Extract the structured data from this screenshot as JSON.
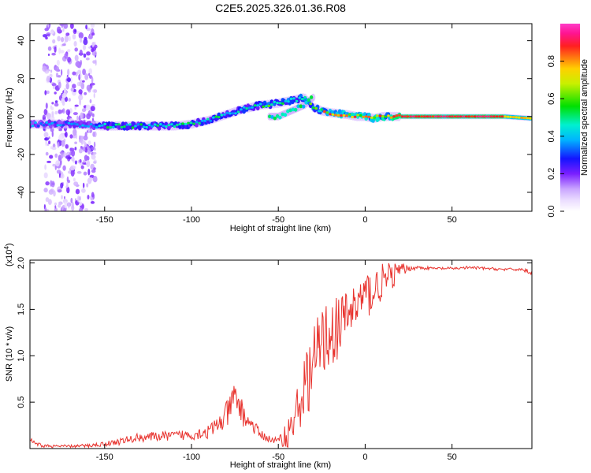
{
  "title": "C2E5.2025.326.01.36.R08",
  "chart_data": [
    {
      "type": "heatmap",
      "name": "spectrogram",
      "xlabel": "Height of straight line (km)",
      "ylabel": "Frequency (Hz)",
      "xlim": [
        -193,
        96
      ],
      "ylim": [
        -50,
        49
      ],
      "xticks": [
        -150,
        -100,
        -50,
        0,
        50
      ],
      "yticks": [
        -40,
        -20,
        0,
        20,
        40
      ],
      "colorbar": {
        "label": "Normalized spectral amplitude",
        "range": [
          0,
          1
        ],
        "ticks": [
          0.0,
          0.2,
          0.4,
          0.6,
          0.8
        ]
      },
      "ridge": {
        "description": "frequency of peak amplitude vs height",
        "x": [
          -193,
          -170,
          -150,
          -130,
          -110,
          -100,
          -90,
          -80,
          -70,
          -60,
          -50,
          -40,
          -35,
          -30,
          -25,
          -20,
          -10,
          -5,
          0,
          5,
          10,
          20,
          50,
          80,
          96
        ],
        "y": [
          -4,
          -4,
          -5,
          -5,
          -5,
          -4,
          -2,
          1,
          4,
          6,
          7,
          9,
          10,
          5,
          3,
          2,
          1,
          0,
          0,
          -1,
          0,
          0,
          0,
          0,
          -1
        ]
      },
      "secondary_ridge": {
        "x": [
          -55,
          -50,
          -45,
          -40,
          -35,
          -30
        ],
        "y": [
          0,
          0,
          2,
          4,
          6,
          10
        ]
      },
      "noise_band_x": [
        -185,
        -155
      ]
    },
    {
      "type": "line",
      "name": "snr",
      "xlabel": "Height of straight line (km)",
      "ylabel": "SNR (10 * v/v)",
      "scale_label": "(x10",
      "scale_exp": "4",
      "xlim": [
        -193,
        96
      ],
      "ylim": [
        0,
        20300
      ],
      "xticks": [
        -150,
        -100,
        -50,
        0,
        50
      ],
      "ytick_values": [
        5000,
        10000,
        15000,
        20000
      ],
      "ytick_labels": [
        "0.5",
        "1.0",
        "1.5",
        "2.0"
      ],
      "series": [
        {
          "name": "SNR",
          "color": "#e8332e",
          "x": [
            -193,
            -190,
            -185,
            -180,
            -170,
            -160,
            -150,
            -140,
            -130,
            -120,
            -110,
            -100,
            -95,
            -90,
            -85,
            -80,
            -75,
            -72,
            -70,
            -65,
            -60,
            -55,
            -50,
            -45,
            -40,
            -35,
            -30,
            -25,
            -20,
            -15,
            -10,
            -5,
            0,
            5,
            10,
            15,
            20,
            25,
            30,
            40,
            50,
            60,
            70,
            80,
            90,
            96
          ],
          "y": [
            1000,
            500,
            300,
            250,
            250,
            300,
            500,
            800,
            1200,
            1300,
            1400,
            1500,
            1700,
            1800,
            2500,
            3500,
            5500,
            4500,
            3500,
            2500,
            1500,
            1000,
            800,
            1500,
            3500,
            6500,
            9000,
            11500,
            12500,
            13000,
            14500,
            15500,
            16500,
            17000,
            18000,
            18500,
            19200,
            19400,
            19500,
            19400,
            19400,
            19500,
            19400,
            19300,
            19300,
            19000
          ],
          "noise_amplitude": [
            300,
            200,
            200,
            150,
            150,
            200,
            250,
            400,
            500,
            500,
            500,
            600,
            700,
            800,
            1000,
            1500,
            1800,
            1500,
            1200,
            800,
            500,
            400,
            400,
            1500,
            2500,
            3500,
            4000,
            4000,
            3500,
            3500,
            3000,
            3000,
            2500,
            2500,
            2000,
            1500,
            900,
            300,
            200,
            150,
            150,
            150,
            150,
            150,
            150,
            300
          ]
        }
      ]
    }
  ]
}
